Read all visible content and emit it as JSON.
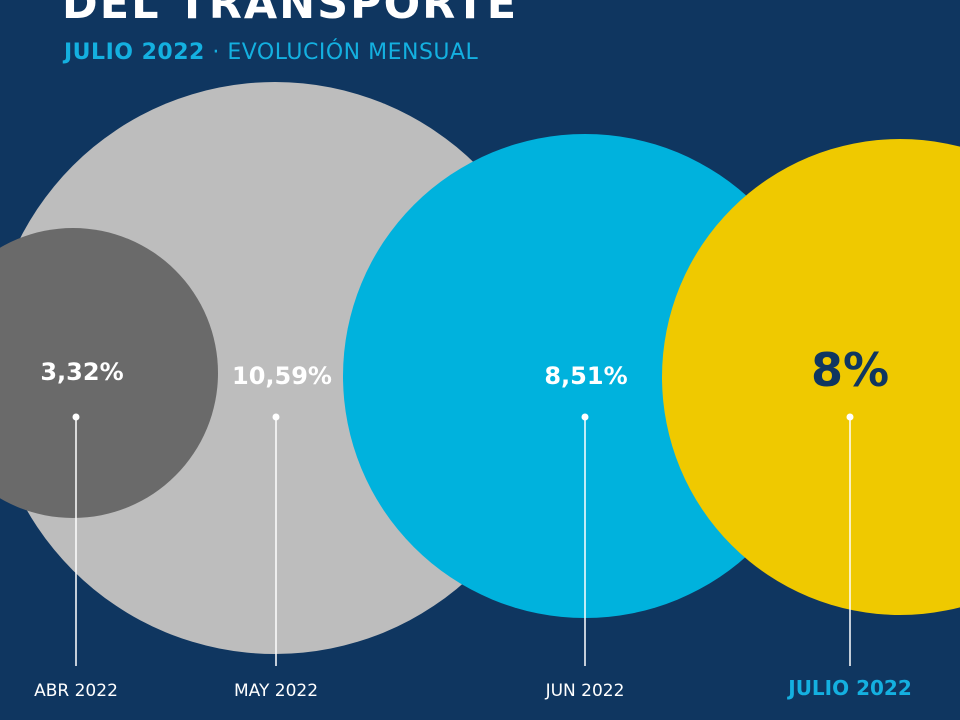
{
  "title": "DEL TRANSPORTE",
  "subtitle": {
    "main": "JULIO 2022",
    "separator": " · ",
    "rest": "EVOLUCIÓN MENSUAL"
  },
  "colors": {
    "background": "#0f3660",
    "accent": "#14b0e0",
    "highlight": "#efc900"
  },
  "chart_data": {
    "type": "bubble",
    "categories": [
      "ABR 2022",
      "MAY 2022",
      "JUN 2022",
      "JULIO 2022"
    ],
    "values": [
      3.32,
      10.59,
      8.51,
      8
    ],
    "value_labels": [
      "3,32%",
      "10,59%",
      "8,51%",
      "8%"
    ],
    "colors": [
      "#6a6a6a",
      "#bdbdbd",
      "#00b2dd",
      "#efc900"
    ],
    "highlight_index": 3
  }
}
